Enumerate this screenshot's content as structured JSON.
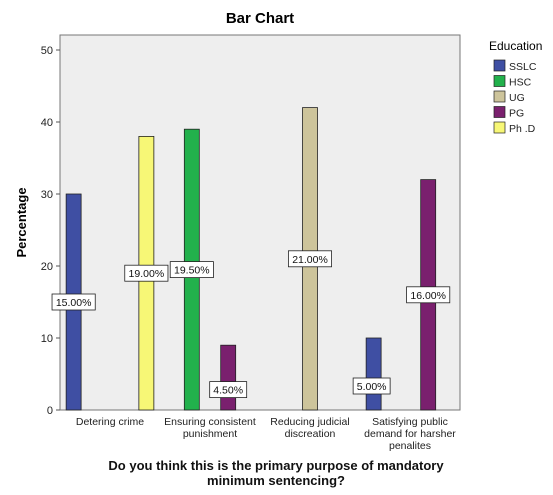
{
  "chart_data": {
    "type": "bar",
    "title": "Bar Chart",
    "xlabel": "Do you think this is the primary purpose of mandatory minimum sentencing?",
    "xlabel_lines": [
      "Do you think this is the primary purpose of mandatory",
      "minimum sentencing?"
    ],
    "ylabel": "Percentage",
    "ylim": [
      0,
      50
    ],
    "yticks": [
      0,
      10,
      20,
      30,
      40,
      50
    ],
    "categories": [
      "Detering crime",
      "Ensuring consistent punishment",
      "Reducing judicial discreation",
      "Satisfying public demand for harsher penalites"
    ],
    "category_label_lines": [
      [
        "Detering crime"
      ],
      [
        "Ensuring consistent",
        "punishment"
      ],
      [
        "Reducing judicial",
        "discreation"
      ],
      [
        "Satisfying public",
        "demand for harsher",
        "penalites"
      ]
    ],
    "legend_title": "Education",
    "legend_position": "right",
    "series": [
      {
        "name": "SSLC",
        "color": "#3f4fa3",
        "values": [
          30,
          null,
          null,
          10
        ],
        "labels": [
          "15.00%",
          null,
          null,
          "5.00%"
        ]
      },
      {
        "name": "HSC",
        "color": "#22b14c",
        "values": [
          null,
          39,
          null,
          null
        ],
        "labels": [
          null,
          "19.50%",
          null,
          null
        ]
      },
      {
        "name": "UG",
        "color": "#cdc49b",
        "values": [
          null,
          null,
          42,
          null
        ],
        "labels": [
          null,
          null,
          "21.00%",
          null
        ]
      },
      {
        "name": "PG",
        "color": "#7a206e",
        "values": [
          null,
          9,
          null,
          32
        ],
        "labels": [
          null,
          "4.50%",
          null,
          "16.00%"
        ]
      },
      {
        "name": "Ph .D",
        "color": "#f7f776",
        "values": [
          38,
          null,
          null,
          null
        ],
        "labels": [
          "19.00%",
          null,
          null,
          null
        ]
      }
    ],
    "grid": false,
    "plot_background": "#eeeeee"
  }
}
